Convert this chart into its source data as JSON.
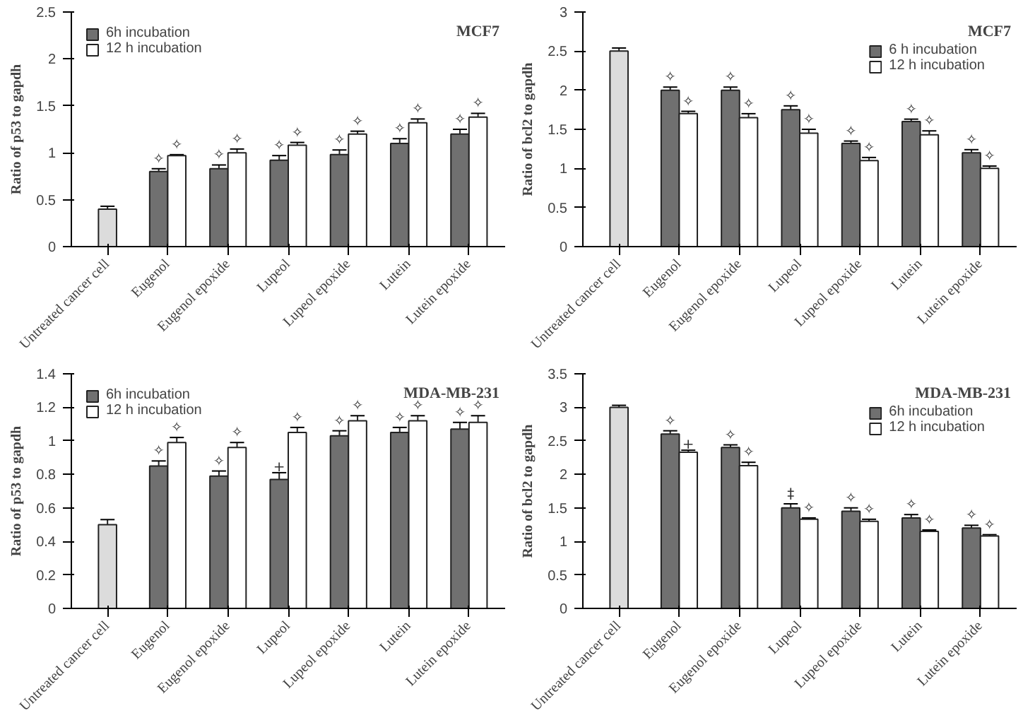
{
  "chart_data": [
    {
      "type": "bar",
      "title": "MCF7",
      "ylabel": "Ratio of p53 to gapdh",
      "categories": [
        "Untreated cancer cell",
        "Eugenol",
        "Eugenol epoxide",
        "Lupeol",
        "Lupeol epoxide",
        "Lutein",
        "Lutein epoxide"
      ],
      "ylim": [
        0,
        2.5
      ],
      "yticks": [
        0,
        0.5,
        1,
        1.5,
        2,
        2.5
      ],
      "grid": false,
      "legend": "top left",
      "series": [
        {
          "color": "#dcdcdc",
          "values": [
            0.4,
            null,
            null,
            null,
            null,
            null,
            null
          ],
          "errors": [
            0.03,
            null,
            null,
            null,
            null,
            null,
            null
          ]
        },
        {
          "name": "6h incubation",
          "color": "#707070",
          "values": [
            null,
            0.8,
            0.83,
            0.92,
            0.98,
            1.1,
            1.2
          ],
          "errors": [
            null,
            0.03,
            0.04,
            0.05,
            0.05,
            0.05,
            0.05
          ],
          "value_labels": [
            null,
            "✧",
            "✧",
            "✧",
            "✧",
            "✧",
            "✧"
          ]
        },
        {
          "name": "12 h incubation",
          "color": "#ffffff",
          "values": [
            null,
            0.97,
            1.0,
            1.08,
            1.2,
            1.32,
            1.38
          ],
          "errors": [
            null,
            0.01,
            0.04,
            0.03,
            0.03,
            0.04,
            0.04
          ],
          "value_labels": [
            null,
            "✧",
            "✧",
            "✧",
            "✧",
            "✧",
            "✧"
          ]
        }
      ]
    },
    {
      "type": "bar",
      "title": "MCF7",
      "ylabel": "Ratio of bcl2 to gapdh",
      "categories": [
        "Untreated cancer cell",
        "Eugenol",
        "Eugenol epoxide",
        "Lupeol",
        "Lupeol epoxide",
        "Lutein",
        "Lutein epoxide"
      ],
      "ylim": [
        0,
        3
      ],
      "yticks": [
        0,
        0.5,
        1,
        1.5,
        2,
        2.5,
        3
      ],
      "grid": false,
      "legend": "top right",
      "series": [
        {
          "color": "#dcdcdc",
          "values": [
            2.5,
            null,
            null,
            null,
            null,
            null,
            null
          ],
          "errors": [
            0.04,
            null,
            null,
            null,
            null,
            null,
            null
          ]
        },
        {
          "name": "6 h incubation",
          "color": "#707070",
          "values": [
            null,
            2.0,
            2.0,
            1.75,
            1.32,
            1.6,
            1.2
          ],
          "errors": [
            null,
            0.04,
            0.04,
            0.05,
            0.03,
            0.03,
            0.04
          ],
          "value_labels": [
            null,
            "✧",
            "✧",
            "✧",
            "✧",
            "✧",
            "✧"
          ]
        },
        {
          "name": "12 h incubation",
          "color": "#ffffff",
          "values": [
            null,
            1.7,
            1.65,
            1.45,
            1.1,
            1.43,
            1.0
          ],
          "errors": [
            null,
            0.03,
            0.05,
            0.05,
            0.04,
            0.05,
            0.03
          ],
          "value_labels": [
            null,
            "✧",
            "✧",
            "✧",
            "✧",
            "✧",
            "✧"
          ]
        }
      ]
    },
    {
      "type": "bar",
      "title": "MDA-MB-231",
      "ylabel": "Ratio of p53 to gapdh",
      "categories": [
        "Untreated cancer cell",
        "Eugenol",
        "Eugenol epoxide",
        "Lupeol",
        "Lupeol epoxide",
        "Lutein",
        "Lutein epoxide"
      ],
      "ylim": [
        0,
        1.4
      ],
      "yticks": [
        0,
        0.2,
        0.4,
        0.6,
        0.8,
        1,
        1.2,
        1.4
      ],
      "grid": false,
      "legend": "top left",
      "series": [
        {
          "color": "#dcdcdc",
          "values": [
            0.5,
            null,
            null,
            null,
            null,
            null,
            null
          ],
          "errors": [
            0.03,
            null,
            null,
            null,
            null,
            null,
            null
          ]
        },
        {
          "name": "6h incubation",
          "color": "#707070",
          "values": [
            null,
            0.85,
            0.79,
            0.77,
            1.03,
            1.05,
            1.07
          ],
          "errors": [
            null,
            0.03,
            0.03,
            0.04,
            0.03,
            0.03,
            0.04
          ],
          "value_labels": [
            null,
            "✧",
            "✧",
            "+",
            "✧",
            "✧",
            "✧"
          ]
        },
        {
          "name": "12 h incubation",
          "color": "#ffffff",
          "values": [
            null,
            0.99,
            0.96,
            1.05,
            1.12,
            1.12,
            1.11
          ],
          "errors": [
            null,
            0.03,
            0.03,
            0.03,
            0.03,
            0.03,
            0.04
          ],
          "value_labels": [
            null,
            "✧",
            "✧",
            "✧",
            "✧",
            "✧",
            "✧"
          ]
        }
      ]
    },
    {
      "type": "bar",
      "title": "MDA-MB-231",
      "ylabel": "Ratio of bcl2 to gapdh",
      "categories": [
        "Untreated cancer cell",
        "Eugenol",
        "Eugenol epoxide",
        "Lupeol",
        "Lupeol epoxide",
        "Lutein",
        "Lutein epoxide"
      ],
      "ylim": [
        0,
        3.5
      ],
      "yticks": [
        0,
        0.5,
        1,
        1.5,
        2,
        2.5,
        3,
        3.5
      ],
      "grid": false,
      "legend": "top right",
      "series": [
        {
          "color": "#dcdcdc",
          "values": [
            3.0,
            null,
            null,
            null,
            null,
            null,
            null
          ],
          "errors": [
            0.03,
            null,
            null,
            null,
            null,
            null,
            null
          ]
        },
        {
          "name": "6h incubation",
          "color": "#707070",
          "values": [
            null,
            2.6,
            2.4,
            1.5,
            1.45,
            1.35,
            1.2
          ],
          "errors": [
            null,
            0.05,
            0.04,
            0.06,
            0.05,
            0.05,
            0.04
          ],
          "value_labels": [
            null,
            "✧",
            "✧",
            "‡",
            "✧",
            "✧",
            "✧"
          ]
        },
        {
          "name": "12 h incubation",
          "color": "#ffffff",
          "values": [
            null,
            2.33,
            2.13,
            1.33,
            1.3,
            1.15,
            1.08
          ],
          "errors": [
            null,
            0.03,
            0.05,
            0.02,
            0.03,
            0.02,
            0.02
          ],
          "value_labels": [
            null,
            "+",
            "✧",
            "✧",
            "✧",
            "✧",
            "✧"
          ]
        }
      ]
    }
  ]
}
